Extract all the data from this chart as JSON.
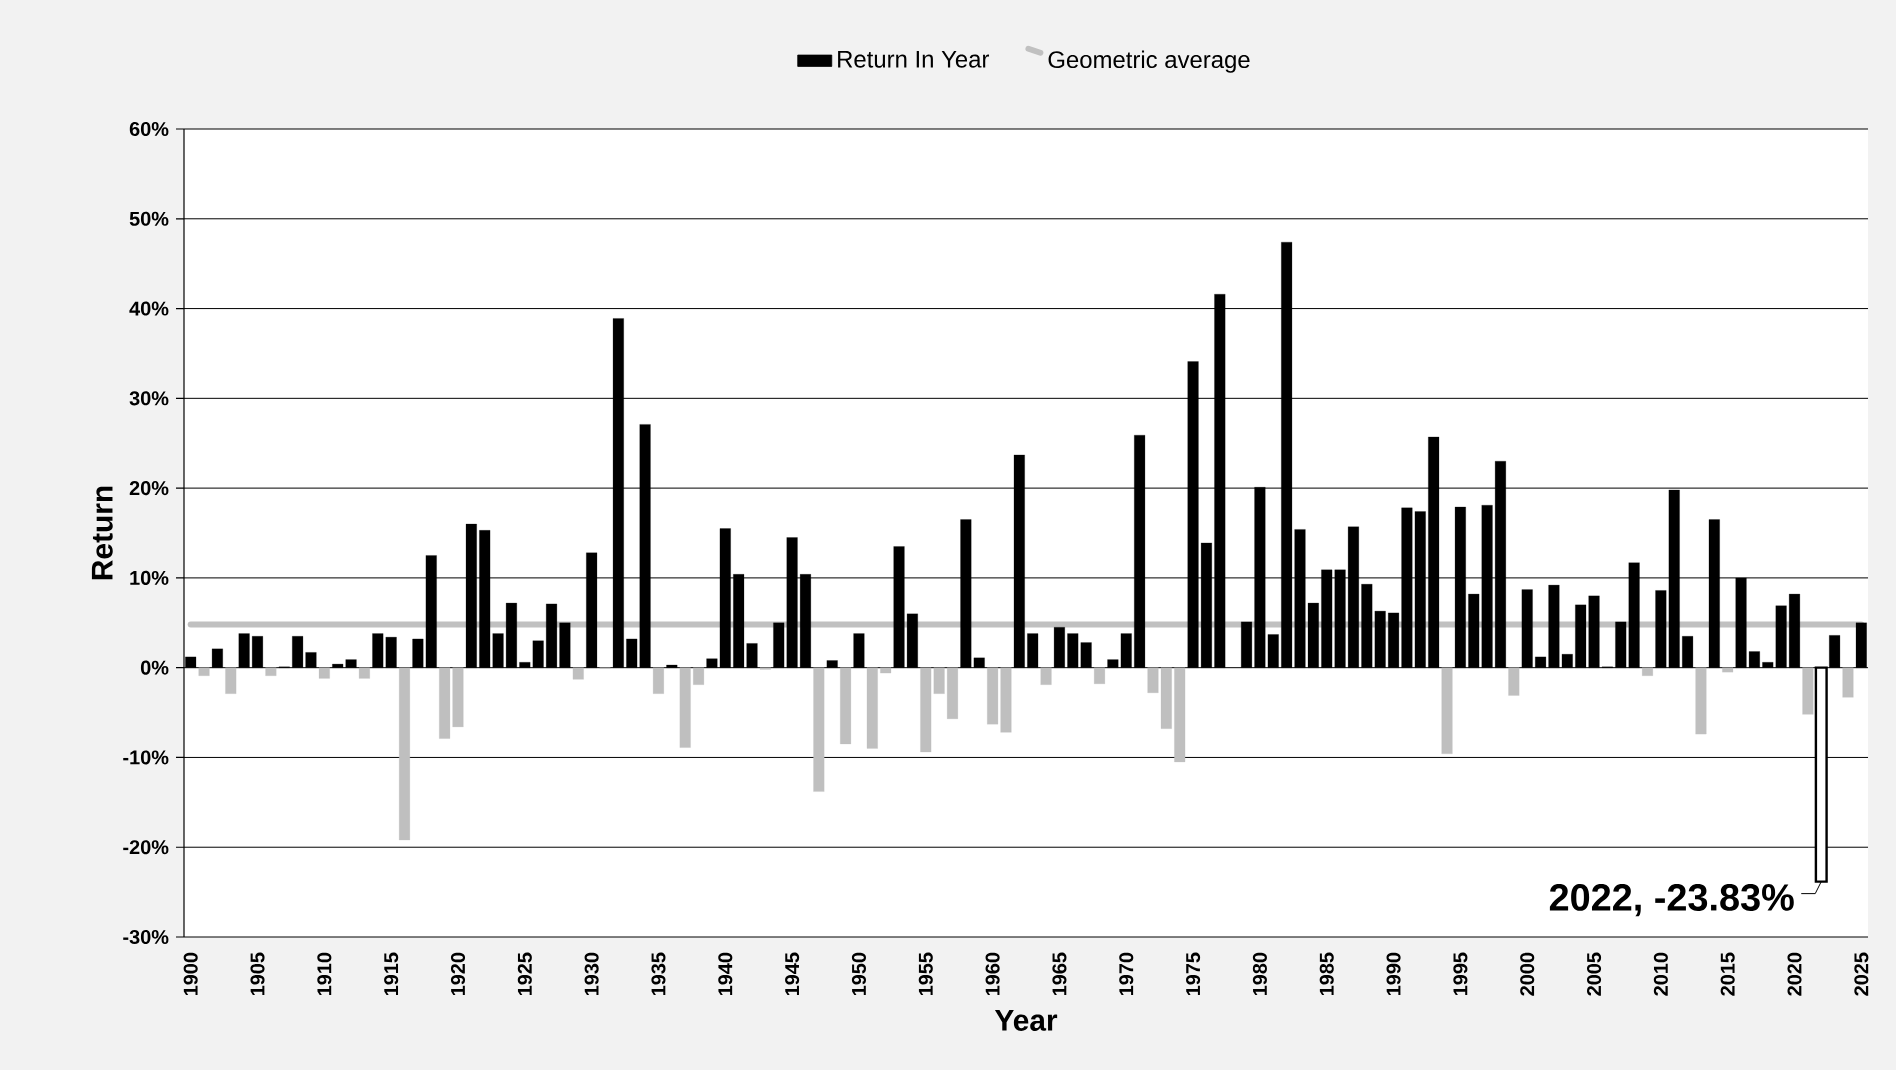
{
  "chart_data": {
    "type": "bar",
    "xlabel": "Year",
    "ylabel": "Return",
    "x": [
      1900,
      1901,
      1902,
      1903,
      1904,
      1905,
      1906,
      1907,
      1908,
      1909,
      1910,
      1911,
      1912,
      1913,
      1914,
      1915,
      1916,
      1917,
      1918,
      1919,
      1920,
      1921,
      1922,
      1923,
      1924,
      1925,
      1926,
      1927,
      1928,
      1929,
      1930,
      1931,
      1932,
      1933,
      1934,
      1935,
      1936,
      1937,
      1938,
      1939,
      1940,
      1941,
      1942,
      1943,
      1944,
      1945,
      1946,
      1947,
      1948,
      1949,
      1950,
      1951,
      1952,
      1953,
      1954,
      1955,
      1956,
      1957,
      1958,
      1959,
      1960,
      1961,
      1962,
      1963,
      1964,
      1965,
      1966,
      1967,
      1968,
      1969,
      1970,
      1971,
      1972,
      1973,
      1974,
      1975,
      1976,
      1977,
      1978,
      1979,
      1980,
      1981,
      1982,
      1983,
      1984,
      1985,
      1986,
      1987,
      1988,
      1989,
      1990,
      1991,
      1992,
      1993,
      1994,
      1995,
      1996,
      1997,
      1998,
      1999,
      2000,
      2001,
      2002,
      2003,
      2004,
      2005,
      2006,
      2007,
      2008,
      2009,
      2010,
      2011,
      2012,
      2013,
      2014,
      2015,
      2016,
      2017,
      2018,
      2019,
      2020,
      2021,
      2022,
      2023,
      2024,
      2025
    ],
    "series": [
      {
        "name": "Return In Year",
        "color": "#000000",
        "values": [
          1.2,
          -0.9,
          2.1,
          -2.9,
          3.8,
          3.5,
          -0.9,
          0.1,
          3.5,
          1.7,
          -1.2,
          0.4,
          0.9,
          -1.2,
          3.8,
          3.4,
          -19.2,
          3.2,
          12.5,
          -7.9,
          -6.6,
          16.0,
          15.3,
          3.8,
          7.2,
          0.6,
          3.0,
          7.1,
          5.0,
          -1.3,
          12.8,
          -0.1,
          38.9,
          3.2,
          27.1,
          -2.9,
          0.3,
          -8.9,
          -1.9,
          1.0,
          15.5,
          10.4,
          2.7,
          -0.2,
          5.0,
          14.5,
          10.4,
          -13.8,
          0.8,
          -8.5,
          3.8,
          -9.0,
          -0.6,
          13.5,
          6.0,
          -9.4,
          -2.9,
          -5.7,
          16.5,
          1.1,
          -6.3,
          -7.2,
          23.7,
          3.8,
          -1.9,
          4.5,
          3.8,
          2.8,
          -1.8,
          0.9,
          3.8,
          25.9,
          -2.8,
          -6.8,
          -10.5,
          34.1,
          13.9,
          41.6,
          null,
          5.1,
          20.1,
          3.7,
          47.4,
          15.4,
          7.2,
          10.9,
          10.9,
          15.7,
          9.3,
          6.3,
          6.1,
          17.8,
          17.4,
          25.7,
          -9.6,
          17.9,
          8.2,
          18.1,
          23.0,
          -3.1,
          8.7,
          1.2,
          9.2,
          1.5,
          7.0,
          8.0,
          0.1,
          5.1,
          11.7,
          -0.9,
          8.6,
          19.8,
          3.5,
          -7.4,
          16.5,
          -0.5,
          10.0,
          1.8,
          0.6,
          6.9,
          8.2,
          -5.2,
          -23.83,
          3.6,
          -3.3,
          5.0
        ],
        "colors": [
          "#000000",
          "#bfbfbf",
          "#000000",
          "#bfbfbf",
          "#000000",
          "#000000",
          "#bfbfbf",
          "#000000",
          "#000000",
          "#000000",
          "#bfbfbf",
          "#000000",
          "#000000",
          "#bfbfbf",
          "#000000",
          "#000000",
          "#bfbfbf",
          "#000000",
          "#000000",
          "#bfbfbf",
          "#bfbfbf",
          "#000000",
          "#000000",
          "#000000",
          "#000000",
          "#000000",
          "#000000",
          "#000000",
          "#000000",
          "#bfbfbf",
          "#000000",
          "#bfbfbf",
          "#000000",
          "#000000",
          "#000000",
          "#bfbfbf",
          "#000000",
          "#bfbfbf",
          "#bfbfbf",
          "#000000",
          "#000000",
          "#000000",
          "#000000",
          "#bfbfbf",
          "#000000",
          "#000000",
          "#000000",
          "#bfbfbf",
          "#000000",
          "#bfbfbf",
          "#000000",
          "#bfbfbf",
          "#bfbfbf",
          "#000000",
          "#000000",
          "#bfbfbf",
          "#bfbfbf",
          "#bfbfbf",
          "#000000",
          "#000000",
          "#bfbfbf",
          "#bfbfbf",
          "#000000",
          "#000000",
          "#bfbfbf",
          "#000000",
          "#000000",
          "#000000",
          "#bfbfbf",
          "#000000",
          "#000000",
          "#000000",
          "#bfbfbf",
          "#bfbfbf",
          "#bfbfbf",
          "#000000",
          "#000000",
          "#000000",
          "#000000",
          "#000000",
          "#000000",
          "#000000",
          "#000000",
          "#000000",
          "#000000",
          "#000000",
          "#000000",
          "#000000",
          "#000000",
          "#000000",
          "#000000",
          "#000000",
          "#000000",
          "#000000",
          "#bfbfbf",
          "#000000",
          "#000000",
          "#000000",
          "#000000",
          "#bfbfbf",
          "#000000",
          "#000000",
          "#000000",
          "#000000",
          "#000000",
          "#000000",
          "#000000",
          "#000000",
          "#000000",
          "#bfbfbf",
          "#000000",
          "#000000",
          "#000000",
          "#bfbfbf",
          "#000000",
          "#bfbfbf",
          "#000000",
          "#000000",
          "#000000",
          "#000000",
          "#000000",
          "#bfbfbf",
          "#ffffff",
          "#000000",
          "#bfbfbf",
          "#000000"
        ]
      },
      {
        "name": "Geometric average",
        "type": "line",
        "color": "#c0c0c0",
        "x": [
          1900,
          2025
        ],
        "values": [
          4.8,
          4.8
        ]
      }
    ],
    "xlim": [
      1899.5,
      2025.5
    ],
    "xticks": [
      1900,
      1905,
      1910,
      1915,
      1920,
      1925,
      1930,
      1935,
      1940,
      1945,
      1950,
      1955,
      1960,
      1965,
      1970,
      1975,
      1980,
      1985,
      1990,
      1995,
      2000,
      2005,
      2010,
      2015,
      2020,
      2025
    ],
    "ylim": [
      -30,
      60
    ],
    "yticks": [
      {
        "value": -30,
        "label": "-30%"
      },
      {
        "value": -20,
        "label": "-20%"
      },
      {
        "value": -10,
        "label": "-10%"
      },
      {
        "value": 0,
        "label": "0%"
      },
      {
        "value": 10,
        "label": "10%"
      },
      {
        "value": 20,
        "label": "20%"
      },
      {
        "value": 30,
        "label": "30%"
      },
      {
        "value": 40,
        "label": "40%"
      },
      {
        "value": 50,
        "label": "50%"
      },
      {
        "value": 60,
        "label": "60%"
      }
    ],
    "grid": "y",
    "legend": "top",
    "annotations": [
      {
        "text": "2022, -23.83%",
        "x": 2022,
        "y": -23.83
      }
    ]
  }
}
